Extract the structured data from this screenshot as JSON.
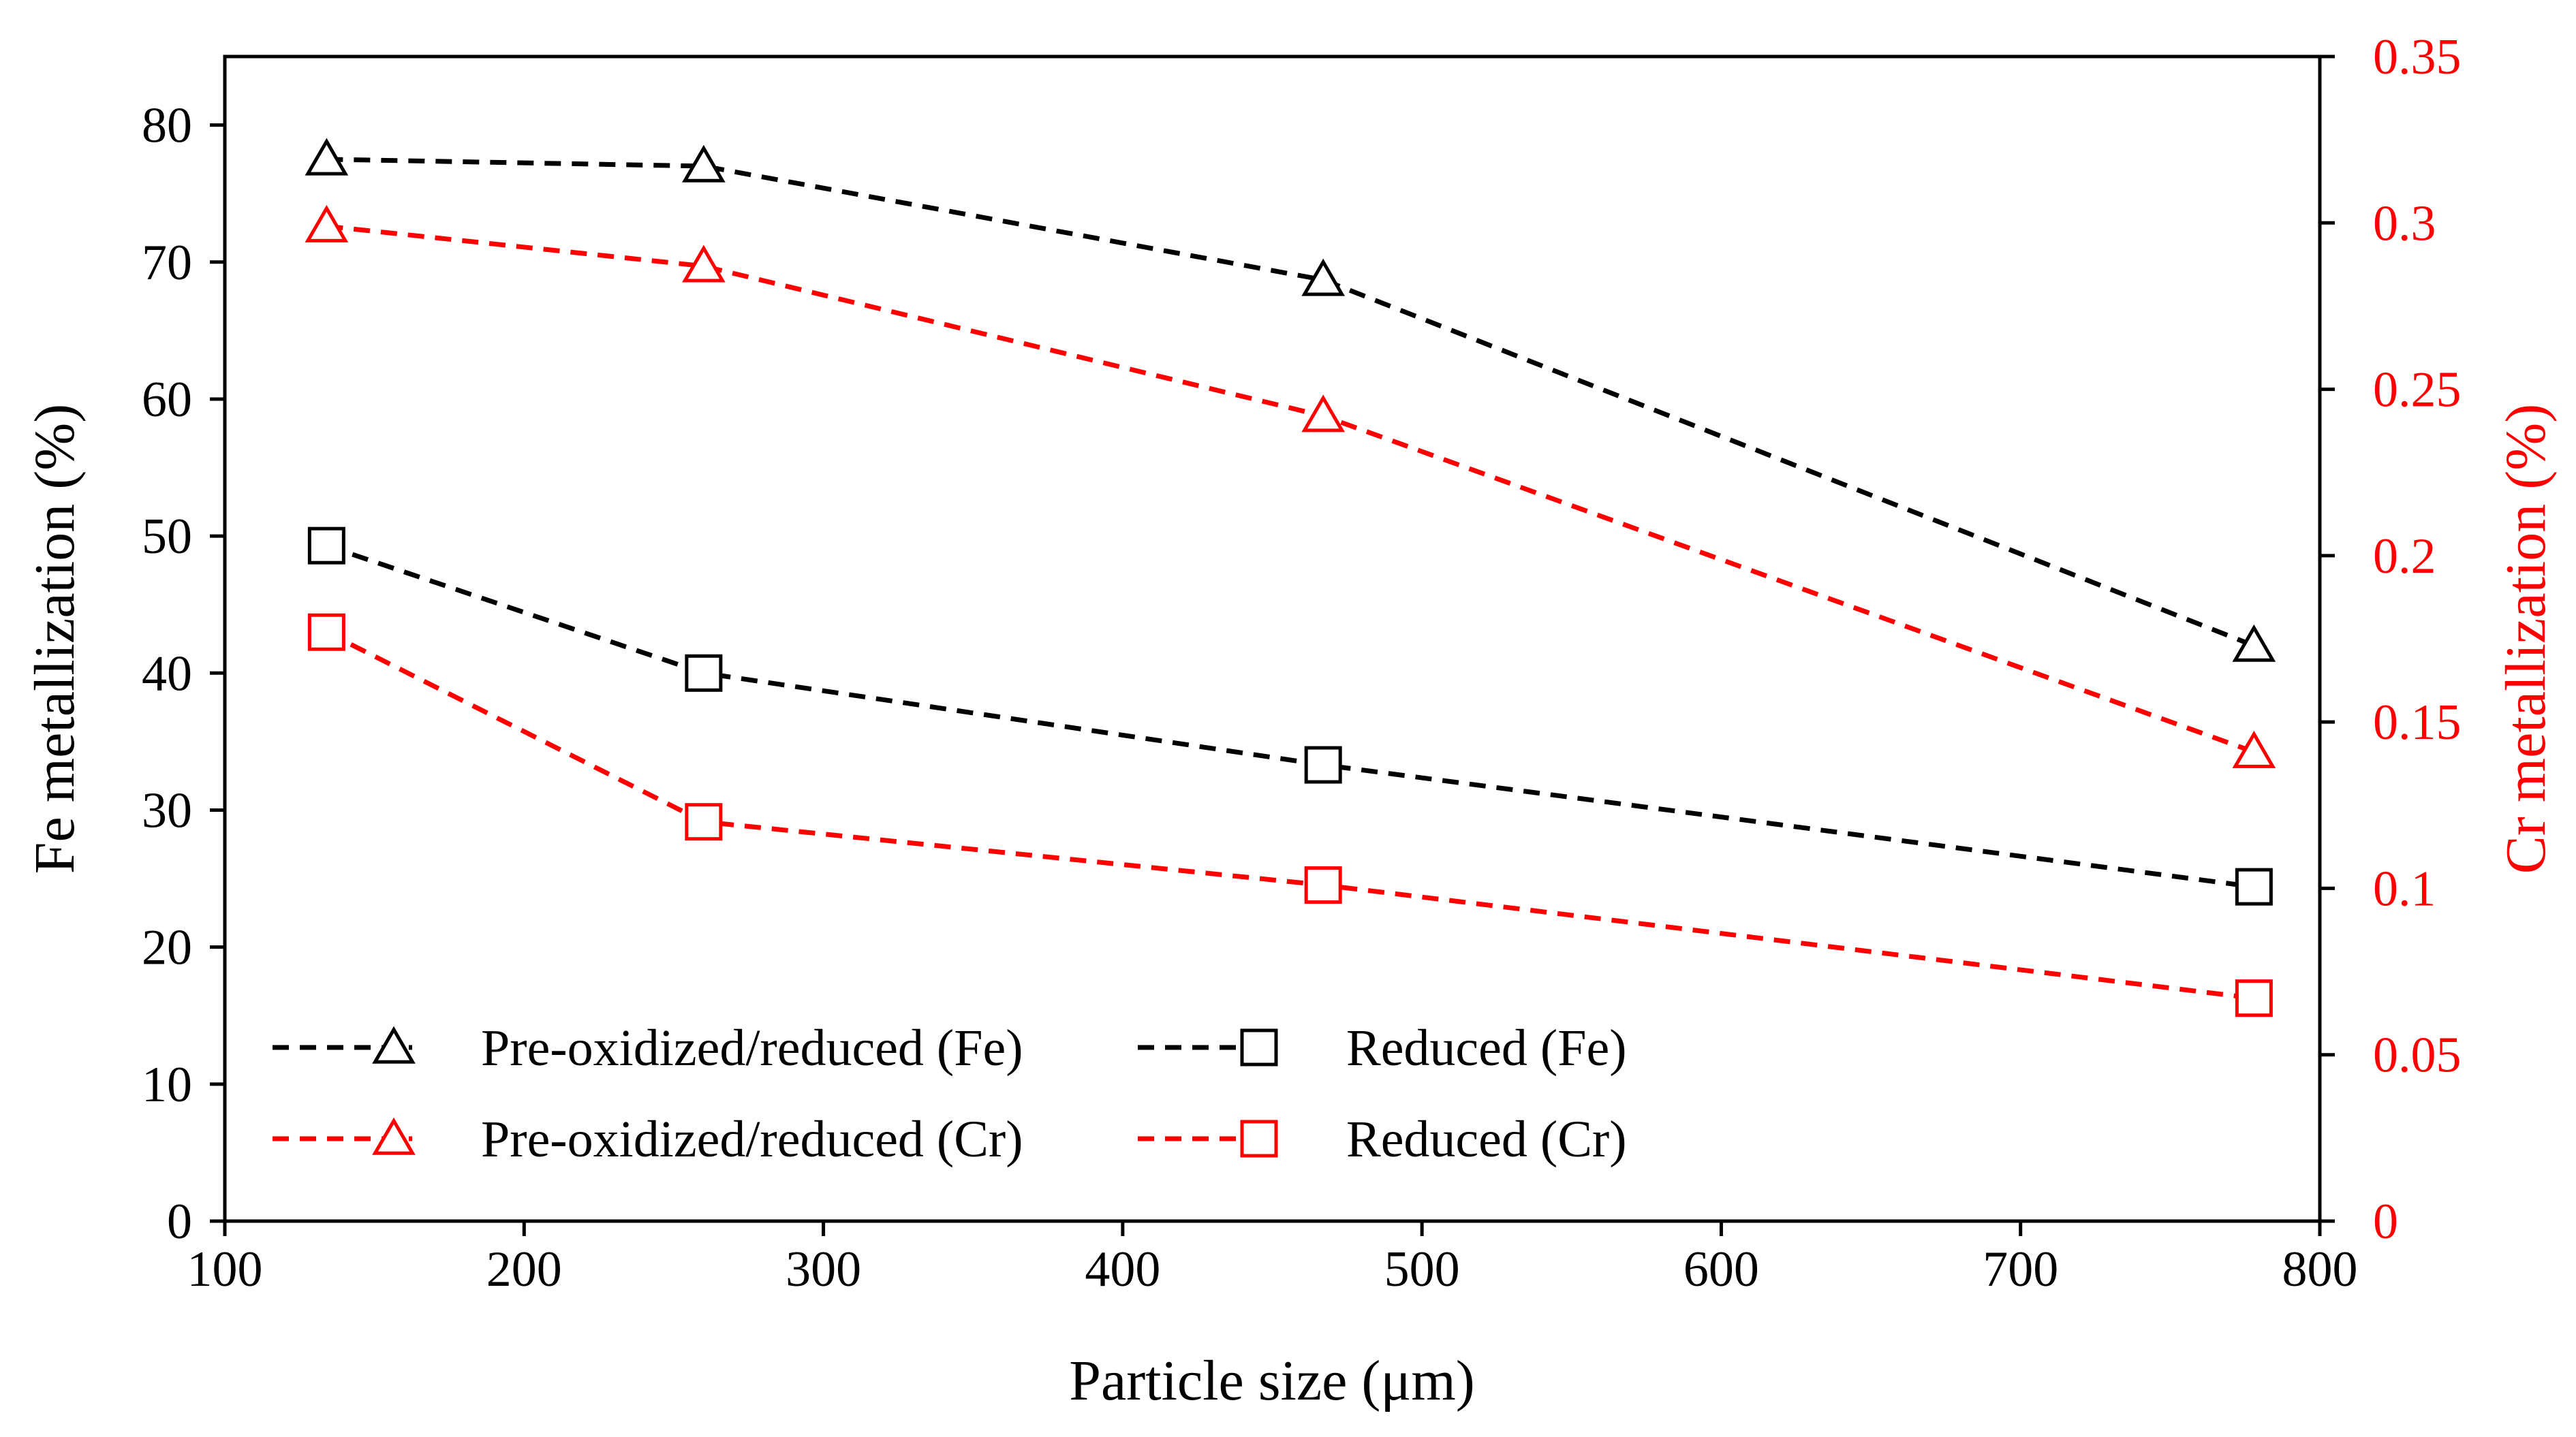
{
  "chart_data": {
    "type": "line",
    "title": "",
    "xlabel": "Particle size (μm)",
    "ylabel": "Fe metallization (%)",
    "y2label": "Cr metallization (%)",
    "xlim": [
      100,
      800
    ],
    "ylim": [
      0,
      85
    ],
    "y2lim": [
      0,
      0.35
    ],
    "xticks": [
      "100",
      "200",
      "300",
      "400",
      "500",
      "600",
      "700",
      "800"
    ],
    "yticks": [
      "0",
      "10",
      "20",
      "30",
      "40",
      "50",
      "60",
      "70",
      "80"
    ],
    "y2ticks": [
      "0",
      "0.05",
      "0.1",
      "0.15",
      "0.2",
      "0.25",
      "0.3",
      "0.35"
    ],
    "x": [
      134,
      260,
      467,
      778
    ],
    "grid": false,
    "legend_position": "bottom-left",
    "colors": {
      "fe": "#000000",
      "cr": "#ff0000"
    },
    "series": [
      {
        "name": "Pre-oxidized/reduced (Fe)",
        "axis": "left",
        "marker": "triangle",
        "color": "#000000",
        "values": [
          77.5,
          77.0,
          68.7,
          42.0
        ]
      },
      {
        "name": "Reduced (Fe)",
        "axis": "left",
        "marker": "square",
        "color": "#000000",
        "values": [
          49.3,
          40.0,
          33.3,
          24.4
        ]
      },
      {
        "name": "Pre-oxidized/reduced (Cr)",
        "axis": "right",
        "marker": "triangle",
        "color": "#ff0000",
        "values": [
          0.299,
          0.287,
          0.242,
          0.141
        ]
      },
      {
        "name": "Reduced (Cr)",
        "axis": "right",
        "marker": "square",
        "color": "#ff0000",
        "values": [
          0.177,
          0.12,
          0.101,
          0.067
        ]
      }
    ]
  }
}
